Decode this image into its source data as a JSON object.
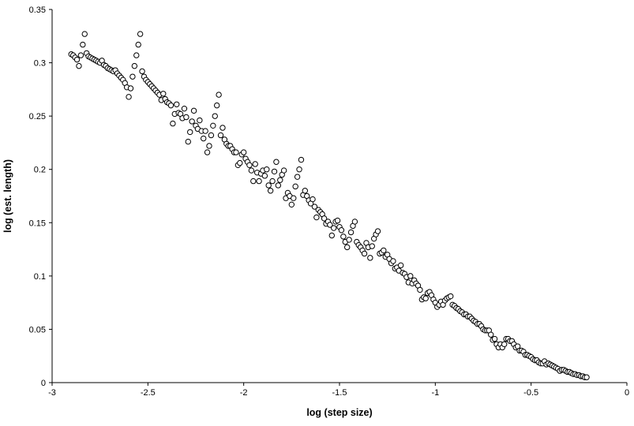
{
  "chart_data": {
    "type": "scatter",
    "title": "",
    "xlabel": "log (step size)",
    "ylabel": "log (est. length)",
    "xlim": [
      -3,
      0
    ],
    "ylim": [
      0,
      0.35
    ],
    "x_ticks": [
      -3,
      -2.5,
      -2,
      -1.5,
      -1,
      -0.5,
      0
    ],
    "x_tick_labels": [
      "-3",
      "-2.5",
      "-2",
      "-1.5",
      "-1",
      "-0.5",
      "0"
    ],
    "y_ticks": [
      0,
      0.05,
      0.1,
      0.15,
      0.2,
      0.25,
      0.3,
      0.35
    ],
    "y_tick_labels": [
      "0",
      "0.05",
      "0.1",
      "0.15",
      "0.2",
      "0.25",
      "0.3",
      "0.35"
    ],
    "grid": false,
    "legend": "none",
    "marker": "open-circle",
    "marker_color": "#000000",
    "series": [
      {
        "points": [
          [
            -2.9,
            0.308
          ],
          [
            -2.89,
            0.307
          ],
          [
            -2.88,
            0.305
          ],
          [
            -2.87,
            0.303
          ],
          [
            -2.86,
            0.297
          ],
          [
            -2.85,
            0.307
          ],
          [
            -2.84,
            0.317
          ],
          [
            -2.83,
            0.327
          ],
          [
            -2.82,
            0.309
          ],
          [
            -2.81,
            0.306
          ],
          [
            -2.8,
            0.305
          ],
          [
            -2.79,
            0.304
          ],
          [
            -2.78,
            0.303
          ],
          [
            -2.77,
            0.302
          ],
          [
            -2.76,
            0.301
          ],
          [
            -2.75,
            0.3
          ],
          [
            -2.74,
            0.302
          ],
          [
            -2.73,
            0.298
          ],
          [
            -2.72,
            0.297
          ],
          [
            -2.71,
            0.295
          ],
          [
            -2.7,
            0.294
          ],
          [
            -2.69,
            0.293
          ],
          [
            -2.68,
            0.292
          ],
          [
            -2.67,
            0.293
          ],
          [
            -2.66,
            0.29
          ],
          [
            -2.65,
            0.288
          ],
          [
            -2.64,
            0.286
          ],
          [
            -2.63,
            0.284
          ],
          [
            -2.62,
            0.281
          ],
          [
            -2.61,
            0.277
          ],
          [
            -2.6,
            0.268
          ],
          [
            -2.59,
            0.276
          ],
          [
            -2.58,
            0.287
          ],
          [
            -2.57,
            0.297
          ],
          [
            -2.56,
            0.307
          ],
          [
            -2.55,
            0.317
          ],
          [
            -2.54,
            0.327
          ],
          [
            -2.53,
            0.292
          ],
          [
            -2.52,
            0.287
          ],
          [
            -2.51,
            0.284
          ],
          [
            -2.5,
            0.282
          ],
          [
            -2.49,
            0.28
          ],
          [
            -2.48,
            0.278
          ],
          [
            -2.47,
            0.276
          ],
          [
            -2.46,
            0.274
          ],
          [
            -2.45,
            0.272
          ],
          [
            -2.44,
            0.27
          ],
          [
            -2.43,
            0.265
          ],
          [
            -2.42,
            0.271
          ],
          [
            -2.41,
            0.266
          ],
          [
            -2.4,
            0.263
          ],
          [
            -2.39,
            0.262
          ],
          [
            -2.38,
            0.26
          ],
          [
            -2.37,
            0.243
          ],
          [
            -2.36,
            0.252
          ],
          [
            -2.35,
            0.261
          ],
          [
            -2.34,
            0.253
          ],
          [
            -2.33,
            0.252
          ],
          [
            -2.32,
            0.248
          ],
          [
            -2.31,
            0.257
          ],
          [
            -2.3,
            0.249
          ],
          [
            -2.29,
            0.226
          ],
          [
            -2.28,
            0.235
          ],
          [
            -2.27,
            0.245
          ],
          [
            -2.26,
            0.255
          ],
          [
            -2.25,
            0.241
          ],
          [
            -2.24,
            0.238
          ],
          [
            -2.23,
            0.246
          ],
          [
            -2.22,
            0.236
          ],
          [
            -2.21,
            0.229
          ],
          [
            -2.2,
            0.236
          ],
          [
            -2.19,
            0.216
          ],
          [
            -2.18,
            0.222
          ],
          [
            -2.17,
            0.232
          ],
          [
            -2.16,
            0.241
          ],
          [
            -2.15,
            0.25
          ],
          [
            -2.14,
            0.26
          ],
          [
            -2.13,
            0.27
          ],
          [
            -2.12,
            0.232
          ],
          [
            -2.11,
            0.239
          ],
          [
            -2.1,
            0.228
          ],
          [
            -2.09,
            0.224
          ],
          [
            -2.08,
            0.222
          ],
          [
            -2.07,
            0.222
          ],
          [
            -2.06,
            0.219
          ],
          [
            -2.05,
            0.216
          ],
          [
            -2.04,
            0.216
          ],
          [
            -2.03,
            0.204
          ],
          [
            -2.02,
            0.206
          ],
          [
            -2.01,
            0.214
          ],
          [
            -2.0,
            0.216
          ],
          [
            -1.99,
            0.21
          ],
          [
            -1.98,
            0.207
          ],
          [
            -1.97,
            0.204
          ],
          [
            -1.96,
            0.199
          ],
          [
            -1.95,
            0.189
          ],
          [
            -1.94,
            0.205
          ],
          [
            -1.93,
            0.197
          ],
          [
            -1.92,
            0.189
          ],
          [
            -1.91,
            0.196
          ],
          [
            -1.9,
            0.199
          ],
          [
            -1.89,
            0.194
          ],
          [
            -1.88,
            0.2
          ],
          [
            -1.87,
            0.185
          ],
          [
            -1.86,
            0.18
          ],
          [
            -1.85,
            0.189
          ],
          [
            -1.84,
            0.198
          ],
          [
            -1.83,
            0.207
          ],
          [
            -1.82,
            0.185
          ],
          [
            -1.81,
            0.19
          ],
          [
            -1.8,
            0.195
          ],
          [
            -1.79,
            0.199
          ],
          [
            -1.78,
            0.173
          ],
          [
            -1.77,
            0.178
          ],
          [
            -1.76,
            0.175
          ],
          [
            -1.75,
            0.167
          ],
          [
            -1.74,
            0.173
          ],
          [
            -1.73,
            0.184
          ],
          [
            -1.72,
            0.193
          ],
          [
            -1.71,
            0.2
          ],
          [
            -1.7,
            0.209
          ],
          [
            -1.69,
            0.176
          ],
          [
            -1.68,
            0.18
          ],
          [
            -1.67,
            0.175
          ],
          [
            -1.66,
            0.171
          ],
          [
            -1.65,
            0.168
          ],
          [
            -1.64,
            0.172
          ],
          [
            -1.63,
            0.165
          ],
          [
            -1.62,
            0.155
          ],
          [
            -1.61,
            0.162
          ],
          [
            -1.6,
            0.16
          ],
          [
            -1.59,
            0.158
          ],
          [
            -1.58,
            0.154
          ],
          [
            -1.57,
            0.149
          ],
          [
            -1.56,
            0.151
          ],
          [
            -1.55,
            0.148
          ],
          [
            -1.54,
            0.138
          ],
          [
            -1.53,
            0.145
          ],
          [
            -1.52,
            0.151
          ],
          [
            -1.51,
            0.152
          ],
          [
            -1.5,
            0.146
          ],
          [
            -1.49,
            0.143
          ],
          [
            -1.48,
            0.137
          ],
          [
            -1.47,
            0.132
          ],
          [
            -1.46,
            0.127
          ],
          [
            -1.45,
            0.134
          ],
          [
            -1.44,
            0.141
          ],
          [
            -1.43,
            0.147
          ],
          [
            -1.42,
            0.151
          ],
          [
            -1.41,
            0.132
          ],
          [
            -1.4,
            0.129
          ],
          [
            -1.39,
            0.127
          ],
          [
            -1.38,
            0.124
          ],
          [
            -1.37,
            0.121
          ],
          [
            -1.36,
            0.131
          ],
          [
            -1.35,
            0.127
          ],
          [
            -1.34,
            0.117
          ],
          [
            -1.33,
            0.128
          ],
          [
            -1.32,
            0.135
          ],
          [
            -1.31,
            0.139
          ],
          [
            -1.3,
            0.142
          ],
          [
            -1.29,
            0.121
          ],
          [
            -1.28,
            0.122
          ],
          [
            -1.27,
            0.124
          ],
          [
            -1.26,
            0.118
          ],
          [
            -1.25,
            0.12
          ],
          [
            -1.24,
            0.116
          ],
          [
            -1.23,
            0.112
          ],
          [
            -1.22,
            0.114
          ],
          [
            -1.21,
            0.107
          ],
          [
            -1.2,
            0.108
          ],
          [
            -1.19,
            0.105
          ],
          [
            -1.18,
            0.11
          ],
          [
            -1.17,
            0.103
          ],
          [
            -1.16,
            0.102
          ],
          [
            -1.15,
            0.099
          ],
          [
            -1.14,
            0.094
          ],
          [
            -1.13,
            0.1
          ],
          [
            -1.12,
            0.093
          ],
          [
            -1.11,
            0.096
          ],
          [
            -1.1,
            0.093
          ],
          [
            -1.09,
            0.091
          ],
          [
            -1.08,
            0.087
          ],
          [
            -1.07,
            0.078
          ],
          [
            -1.06,
            0.08
          ],
          [
            -1.05,
            0.079
          ],
          [
            -1.04,
            0.084
          ],
          [
            -1.03,
            0.085
          ],
          [
            -1.02,
            0.082
          ],
          [
            -1.01,
            0.078
          ],
          [
            -1.0,
            0.075
          ],
          [
            -0.99,
            0.071
          ],
          [
            -0.98,
            0.073
          ],
          [
            -0.97,
            0.076
          ],
          [
            -0.96,
            0.073
          ],
          [
            -0.95,
            0.077
          ],
          [
            -0.94,
            0.079
          ],
          [
            -0.93,
            0.08
          ],
          [
            -0.92,
            0.081
          ],
          [
            -0.91,
            0.073
          ],
          [
            -0.9,
            0.072
          ],
          [
            -0.89,
            0.07
          ],
          [
            -0.88,
            0.069
          ],
          [
            -0.87,
            0.067
          ],
          [
            -0.86,
            0.066
          ],
          [
            -0.85,
            0.064
          ],
          [
            -0.84,
            0.064
          ],
          [
            -0.83,
            0.062
          ],
          [
            -0.82,
            0.062
          ],
          [
            -0.81,
            0.06
          ],
          [
            -0.8,
            0.058
          ],
          [
            -0.79,
            0.057
          ],
          [
            -0.78,
            0.055
          ],
          [
            -0.77,
            0.055
          ],
          [
            -0.76,
            0.053
          ],
          [
            -0.75,
            0.05
          ],
          [
            -0.74,
            0.049
          ],
          [
            -0.73,
            0.049
          ],
          [
            -0.72,
            0.049
          ],
          [
            -0.71,
            0.045
          ],
          [
            -0.7,
            0.04
          ],
          [
            -0.69,
            0.041
          ],
          [
            -0.68,
            0.036
          ],
          [
            -0.67,
            0.033
          ],
          [
            -0.66,
            0.036
          ],
          [
            -0.65,
            0.033
          ],
          [
            -0.64,
            0.036
          ],
          [
            -0.63,
            0.041
          ],
          [
            -0.62,
            0.041
          ],
          [
            -0.61,
            0.039
          ],
          [
            -0.6,
            0.039
          ],
          [
            -0.59,
            0.036
          ],
          [
            -0.58,
            0.033
          ],
          [
            -0.57,
            0.034
          ],
          [
            -0.56,
            0.03
          ],
          [
            -0.55,
            0.03
          ],
          [
            -0.54,
            0.029
          ],
          [
            -0.53,
            0.026
          ],
          [
            -0.52,
            0.026
          ],
          [
            -0.51,
            0.025
          ],
          [
            -0.5,
            0.024
          ],
          [
            -0.49,
            0.022
          ],
          [
            -0.48,
            0.021
          ],
          [
            -0.47,
            0.021
          ],
          [
            -0.46,
            0.019
          ],
          [
            -0.45,
            0.018
          ],
          [
            -0.44,
            0.018
          ],
          [
            -0.43,
            0.02
          ],
          [
            -0.42,
            0.017
          ],
          [
            -0.41,
            0.018
          ],
          [
            -0.4,
            0.017
          ],
          [
            -0.39,
            0.016
          ],
          [
            -0.38,
            0.015
          ],
          [
            -0.37,
            0.014
          ],
          [
            -0.36,
            0.013
          ],
          [
            -0.35,
            0.011
          ],
          [
            -0.34,
            0.012
          ],
          [
            -0.33,
            0.012
          ],
          [
            -0.32,
            0.011
          ],
          [
            -0.31,
            0.01
          ],
          [
            -0.3,
            0.01
          ],
          [
            -0.29,
            0.009
          ],
          [
            -0.28,
            0.008
          ],
          [
            -0.27,
            0.008
          ],
          [
            -0.26,
            0.007
          ],
          [
            -0.25,
            0.007
          ],
          [
            -0.24,
            0.006
          ],
          [
            -0.23,
            0.006
          ],
          [
            -0.22,
            0.005
          ],
          [
            -0.21,
            0.005
          ]
        ]
      }
    ]
  }
}
